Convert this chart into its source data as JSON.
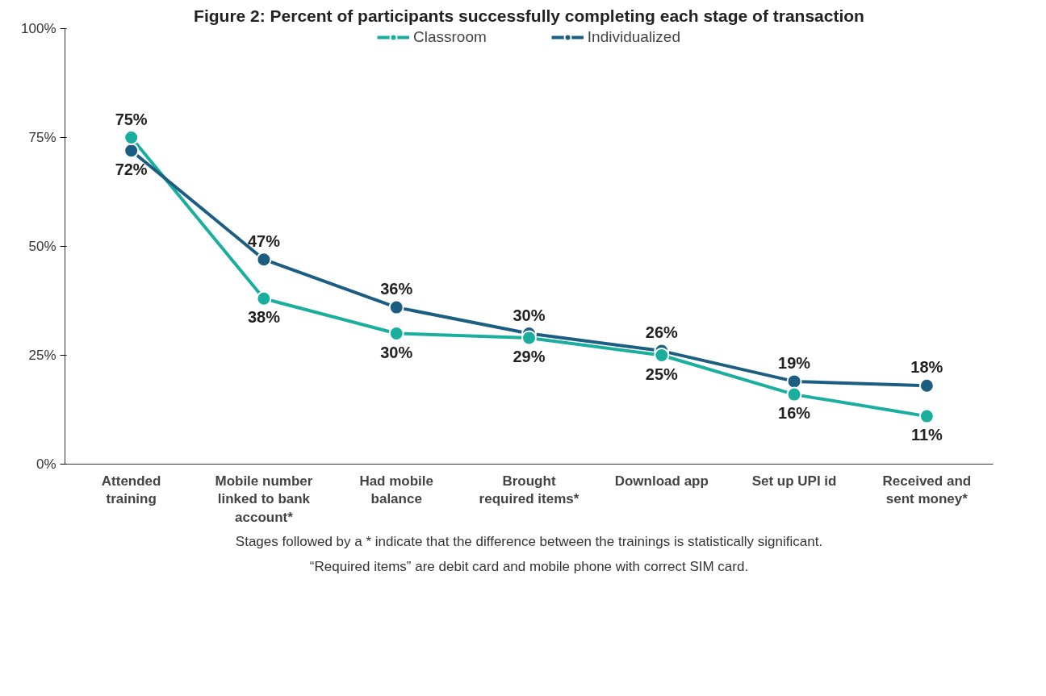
{
  "chart_data": {
    "type": "line",
    "title": "Figure 2: Percent of participants successfully completing each stage of transaction",
    "categories": [
      "Attended training",
      "Mobile number linked to bank account*",
      "Had mobile balance",
      "Brought required items*",
      "Download app",
      "Set up UPI id",
      "Received and sent money*"
    ],
    "series": [
      {
        "name": "Classroom",
        "color": "#1aae9f",
        "values": [
          75,
          38,
          30,
          29,
          25,
          16,
          11
        ],
        "value_labels": [
          "75%",
          "38%",
          "30%",
          "29%",
          "25%",
          "16%",
          "11%"
        ]
      },
      {
        "name": "Individualized",
        "color": "#1b5e82",
        "values": [
          72,
          47,
          36,
          30,
          26,
          19,
          18
        ],
        "value_labels": [
          "72%",
          "47%",
          "36%",
          "30%",
          "26%",
          "19%",
          "18%"
        ]
      }
    ],
    "ylim": [
      0,
      100
    ],
    "yticks": [
      {
        "value": 0,
        "label": "0%"
      },
      {
        "value": 25,
        "label": "25%"
      },
      {
        "value": 50,
        "label": "50%"
      },
      {
        "value": 75,
        "label": "75%"
      },
      {
        "value": 100,
        "label": "100%"
      }
    ],
    "legend": "top",
    "grid": false,
    "marker": "circle",
    "line_style": "solid",
    "annotations": [
      "Stages followed by a * indicate that the difference between the trainings is statistically significant.",
      "“Required items” are debit card and mobile phone with correct SIM card."
    ]
  }
}
